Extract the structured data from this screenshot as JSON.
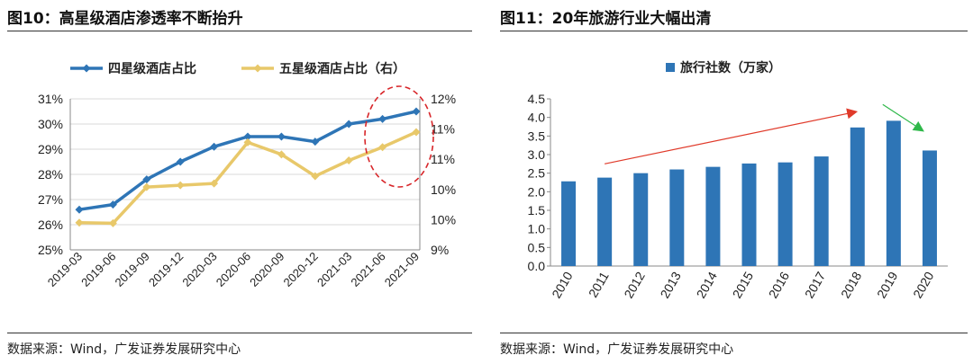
{
  "left_panel": {
    "title": "图10：高星级酒店渗透率不断抬升",
    "source": "数据来源：Wind，广发证券发展研究中心"
  },
  "right_panel": {
    "title": "图11：20年旅游行业大幅出清",
    "source": "数据来源：Wind，广发证券发展研究中心"
  },
  "chart_data": [
    {
      "type": "line",
      "title": "高星级酒店渗透率不断抬升",
      "categories": [
        "2019-03",
        "2019-06",
        "2019-09",
        "2019-12",
        "2020-03",
        "2020-06",
        "2020-09",
        "2020-12",
        "2021-03",
        "2021-06",
        "2021-09"
      ],
      "series": [
        {
          "name": "四星级酒店占比",
          "axis": "left",
          "color": "#2e75b6",
          "values": [
            26.6,
            26.8,
            27.8,
            28.5,
            29.1,
            29.5,
            29.5,
            29.3,
            30.0,
            30.2,
            30.5
          ]
        },
        {
          "name": "五星级酒店占比（右）",
          "axis": "right",
          "color": "#e8c86a",
          "values": [
            9.95,
            9.94,
            10.54,
            10.57,
            10.6,
            11.28,
            11.08,
            10.72,
            10.98,
            11.2,
            11.45
          ]
        }
      ],
      "y_left": {
        "min": 25,
        "max": 31,
        "step": 1,
        "tick_labels": [
          "25%",
          "26%",
          "27%",
          "28%",
          "29%",
          "30%",
          "31%"
        ]
      },
      "y_right": {
        "min": 9.5,
        "max": 12.0,
        "step": 0.5,
        "tick_labels": [
          "9%",
          "10%",
          "10%",
          "11%",
          "11%",
          "12%"
        ]
      },
      "legend": "top",
      "annotation": "dashed red ellipse highlighting 2021-06 to 2021-09"
    },
    {
      "type": "bar",
      "title": "20年旅游行业大幅出清",
      "categories": [
        "2010",
        "2011",
        "2012",
        "2013",
        "2014",
        "2015",
        "2016",
        "2017",
        "2018",
        "2019",
        "2020"
      ],
      "series": [
        {
          "name": "旅行社数（万家）",
          "color": "#2e75b6",
          "values": [
            2.28,
            2.38,
            2.5,
            2.6,
            2.67,
            2.76,
            2.79,
            2.95,
            3.73,
            3.91,
            3.11
          ]
        }
      ],
      "ylim": [
        0,
        4.5
      ],
      "y_tick_labels": [
        "0.0",
        "0.5",
        "1.0",
        "1.5",
        "2.0",
        "2.5",
        "3.0",
        "3.5",
        "4.0",
        "4.5"
      ],
      "legend": "top",
      "annotations": [
        "red arrow rising from 2011 to 2018",
        "green arrow falling from 2019 to 2020"
      ]
    }
  ],
  "colors": {
    "blue": "#2e75b6",
    "gold": "#e8c86a",
    "red_arrow": "#e03a2a",
    "green_arrow": "#2fb84a"
  }
}
